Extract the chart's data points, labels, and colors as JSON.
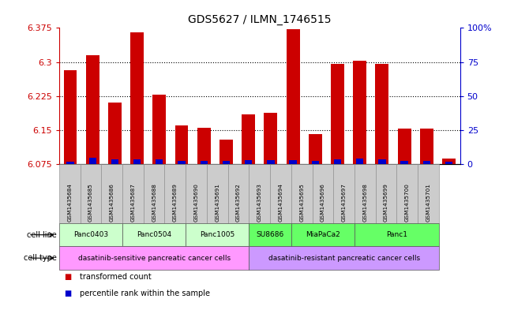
{
  "title": "GDS5627 / ILMN_1746515",
  "samples": [
    "GSM1435684",
    "GSM1435685",
    "GSM1435686",
    "GSM1435687",
    "GSM1435688",
    "GSM1435689",
    "GSM1435690",
    "GSM1435691",
    "GSM1435692",
    "GSM1435693",
    "GSM1435694",
    "GSM1435695",
    "GSM1435696",
    "GSM1435697",
    "GSM1435698",
    "GSM1435699",
    "GSM1435700",
    "GSM1435701"
  ],
  "transformed_count": [
    6.282,
    6.315,
    6.21,
    6.365,
    6.228,
    6.16,
    6.155,
    6.13,
    6.185,
    6.188,
    6.372,
    6.142,
    6.295,
    6.302,
    6.295,
    6.153,
    6.153,
    6.088
  ],
  "percentile_rank": [
    2.0,
    5.0,
    3.5,
    3.5,
    3.5,
    2.5,
    2.5,
    2.5,
    3.0,
    3.0,
    3.0,
    2.5,
    3.5,
    4.0,
    3.5,
    2.5,
    2.5,
    2.0
  ],
  "baseline": 6.075,
  "ylim_left": [
    6.075,
    6.375
  ],
  "yticks_left": [
    6.075,
    6.15,
    6.225,
    6.3,
    6.375
  ],
  "ytick_labels_left": [
    "6.075",
    "6.15",
    "6.225",
    "6.3",
    "6.375"
  ],
  "ylim_right": [
    0,
    100
  ],
  "yticks_right": [
    0,
    25,
    50,
    75,
    100
  ],
  "ytick_labels_right": [
    "0",
    "25",
    "50",
    "75",
    "100%"
  ],
  "cell_line_groups": [
    {
      "label": "Panc0403",
      "start": 0,
      "end": 2,
      "color": "#ccffcc"
    },
    {
      "label": "Panc0504",
      "start": 3,
      "end": 5,
      "color": "#ccffcc"
    },
    {
      "label": "Panc1005",
      "start": 6,
      "end": 8,
      "color": "#ccffcc"
    },
    {
      "label": "SU8686",
      "start": 9,
      "end": 10,
      "color": "#66ff66"
    },
    {
      "label": "MiaPaCa2",
      "start": 11,
      "end": 13,
      "color": "#66ff66"
    },
    {
      "label": "Panc1",
      "start": 14,
      "end": 17,
      "color": "#66ff66"
    }
  ],
  "cell_type_groups": [
    {
      "label": "dasatinib-sensitive pancreatic cancer cells",
      "start": 0,
      "end": 8,
      "color": "#ff99ff"
    },
    {
      "label": "dasatinib-resistant pancreatic cancer cells",
      "start": 9,
      "end": 17,
      "color": "#cc99ff"
    }
  ],
  "bar_color_red": "#cc0000",
  "bar_color_blue": "#0000cc",
  "bar_width": 0.6,
  "bg_color": "#ffffff",
  "left_axis_color": "#cc0000",
  "right_axis_color": "#0000cc",
  "sample_box_color": "#cccccc",
  "legend_items": [
    {
      "label": "transformed count",
      "color": "#cc0000"
    },
    {
      "label": "percentile rank within the sample",
      "color": "#0000cc"
    }
  ]
}
